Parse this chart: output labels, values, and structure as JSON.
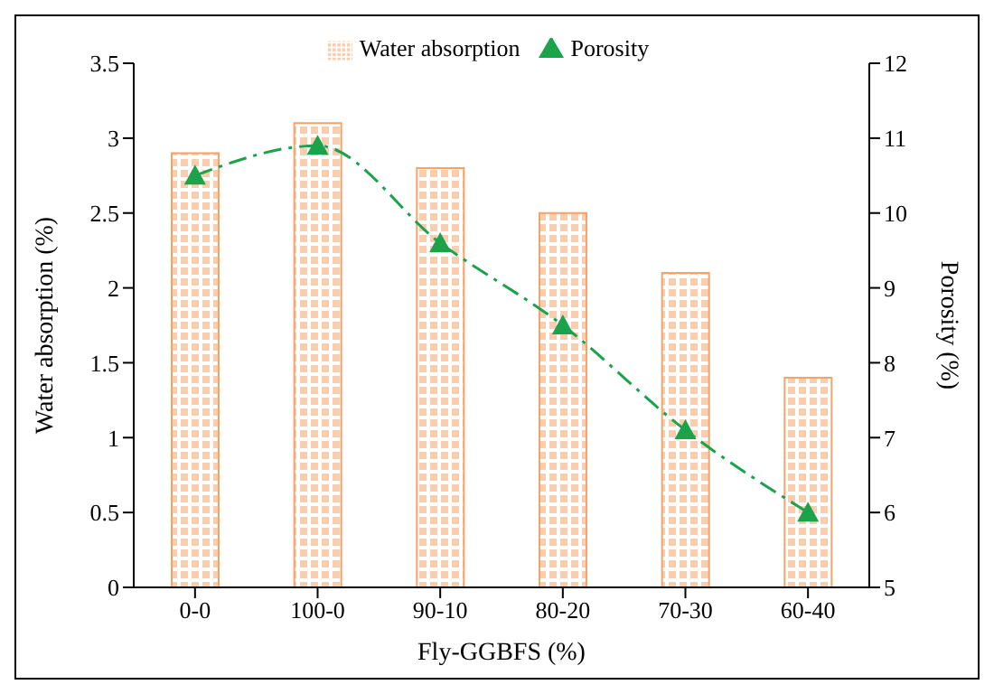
{
  "chart_data": {
    "type": "bar",
    "xlabel": "Fly-GGBFS (%)",
    "ylabel": "Water absorption (%)",
    "y2label": "Porosity (%)",
    "categories": [
      "0-0",
      "100-0",
      "90-10",
      "80-20",
      "70-30",
      "60-40"
    ],
    "series": [
      {
        "name": "Water absorption",
        "color": "#f4a46a",
        "values": [
          2.9,
          3.1,
          2.8,
          2.5,
          2.1,
          1.4
        ]
      },
      {
        "name": "Porosity",
        "type": "line",
        "axis": "y2",
        "color": "#1aa34a",
        "values": [
          10.5,
          10.9,
          9.6,
          8.5,
          7.1,
          6.0
        ],
        "marker": "triangle",
        "line_style": "dashdot"
      }
    ],
    "ylim": [
      0,
      3.5
    ],
    "yticks": [
      0,
      0.5,
      1,
      1.5,
      2,
      2.5,
      3,
      3.5
    ],
    "y2lim": [
      5,
      12
    ],
    "y2ticks": [
      5,
      6,
      7,
      8,
      9,
      10,
      11,
      12
    ],
    "legend": "top"
  }
}
